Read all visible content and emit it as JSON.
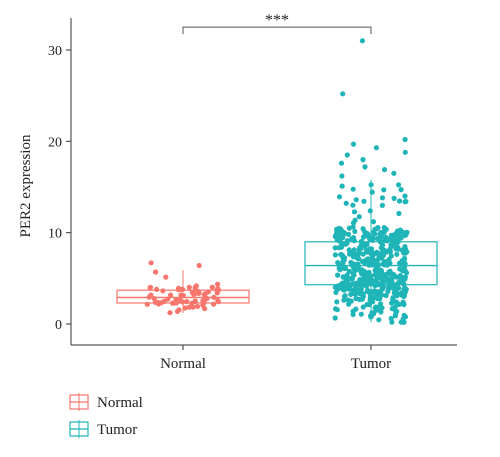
{
  "chart_data": {
    "type": "box",
    "title": "",
    "xlabel": "",
    "ylabel": "PER2 expression",
    "ylim": [
      -2.3,
      33.5
    ],
    "yticks": [
      0,
      10,
      20,
      30
    ],
    "ytick_labels": [
      "0",
      "10",
      "20",
      "30"
    ],
    "categories": [
      "Normal",
      "Tumor"
    ],
    "series": [
      {
        "name": "Normal",
        "color": "#F8766D",
        "box": {
          "q1": 2.3,
          "median": 2.9,
          "q3": 3.7,
          "whisker_low": 1.2,
          "whisker_high": 5.9
        },
        "approx_n": 70,
        "outliers": [
          6.4,
          6.7
        ]
      },
      {
        "name": "Tumor",
        "color": "#1FB5B8",
        "box": {
          "q1": 4.3,
          "median": 6.4,
          "q3": 9.0,
          "whisker_low": 0.2,
          "whisker_high": 15.8
        },
        "approx_n": 500,
        "outliers": [
          31.0,
          25.2,
          20.2,
          19.7,
          19.3,
          18.8,
          18.5,
          18.0,
          17.6,
          17.2,
          16.9,
          16.5,
          16.2
        ]
      }
    ],
    "annotation": {
      "label": "***",
      "between": [
        "Normal",
        "Tumor"
      ],
      "y": 32.5
    },
    "legend": {
      "position": "bottom-left",
      "entries": [
        "Normal",
        "Tumor"
      ]
    },
    "grid": false
  }
}
